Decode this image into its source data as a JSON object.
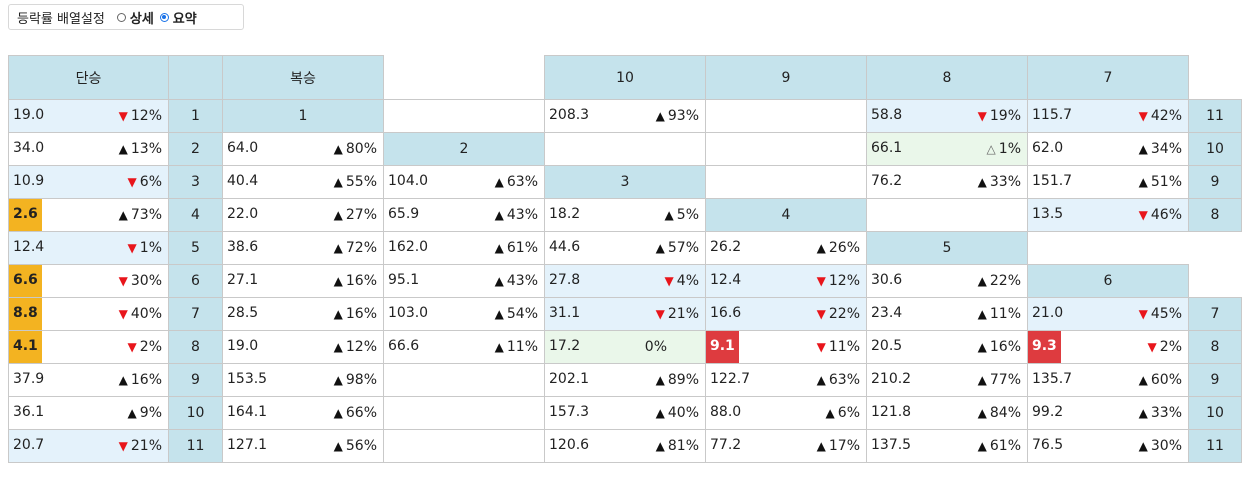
{
  "toolbar": {
    "label": "등락률 배열설정",
    "options": [
      {
        "label": "상세",
        "selected": false
      },
      {
        "label": "요약",
        "selected": true
      }
    ]
  },
  "headers": {
    "single": "단승",
    "quinella": "복승",
    "cols": [
      "10",
      "9",
      "8",
      "7"
    ]
  },
  "colors": {
    "header_bg": "#c5e3ec",
    "light_blue": "#e4f2fb",
    "light_green": "#eaf7ea",
    "gold": "#f3b321",
    "red_badge": "#de3b3f",
    "down_arrow": "#e8151b"
  },
  "rows": [
    {
      "num": "1",
      "single": {
        "v": "19.0",
        "d": "down",
        "p": "12%",
        "bg": "lb"
      },
      "a": {
        "type": "header",
        "label": "1"
      },
      "b": {
        "type": "blank"
      },
      "c10": {
        "v": "208.3",
        "d": "up",
        "p": "93%"
      },
      "c9": {
        "type": "empty"
      },
      "c8": {
        "v": "58.8",
        "d": "down",
        "p": "19%",
        "bg": "lb"
      },
      "c7": {
        "v": "115.7",
        "d": "down",
        "p": "42%",
        "bg": "lb"
      },
      "rn": "11"
    },
    {
      "num": "2",
      "single": {
        "v": "34.0",
        "d": "up",
        "p": "13%"
      },
      "a": {
        "v": "64.0",
        "d": "up",
        "p": "80%"
      },
      "b": {
        "type": "header",
        "label": "2"
      },
      "c10": {
        "type": "empty"
      },
      "c9": {
        "type": "empty"
      },
      "c8": {
        "v": "66.1",
        "d": "hollow",
        "p": "1%",
        "bg": "lg"
      },
      "c7": {
        "v": "62.0",
        "d": "up",
        "p": "34%"
      },
      "rn": "10"
    },
    {
      "num": "3",
      "single": {
        "v": "10.9",
        "d": "down",
        "p": "6%",
        "bg": "lb"
      },
      "a": {
        "v": "40.4",
        "d": "up",
        "p": "55%"
      },
      "b": {
        "v": "104.0",
        "d": "up",
        "p": "63%"
      },
      "c10": {
        "type": "header",
        "label": "3"
      },
      "c9": {
        "type": "empty"
      },
      "c8": {
        "v": "76.2",
        "d": "up",
        "p": "33%"
      },
      "c7": {
        "v": "151.7",
        "d": "up",
        "p": "51%"
      },
      "rn": "9"
    },
    {
      "num": "4",
      "single": {
        "v": "2.6",
        "d": "up",
        "p": "73%",
        "hl": "gold"
      },
      "a": {
        "v": "22.0",
        "d": "up",
        "p": "27%"
      },
      "b": {
        "v": "65.9",
        "d": "up",
        "p": "43%"
      },
      "c10": {
        "v": "18.2",
        "d": "up",
        "p": "5%"
      },
      "c9": {
        "type": "header",
        "label": "4"
      },
      "c8": {
        "type": "empty"
      },
      "c7": {
        "v": "13.5",
        "d": "down",
        "p": "46%",
        "bg": "lb"
      },
      "rn": "8"
    },
    {
      "num": "5",
      "single": {
        "v": "12.4",
        "d": "down",
        "p": "1%",
        "bg": "lb"
      },
      "a": {
        "v": "38.6",
        "d": "up",
        "p": "72%"
      },
      "b": {
        "v": "162.0",
        "d": "up",
        "p": "61%"
      },
      "c10": {
        "v": "44.6",
        "d": "up",
        "p": "57%"
      },
      "c9": {
        "v": "26.2",
        "d": "up",
        "p": "26%"
      },
      "c8": {
        "type": "header",
        "label": "5"
      },
      "c7": {
        "type": "blank"
      },
      "rn": ""
    },
    {
      "num": "6",
      "single": {
        "v": "6.6",
        "d": "down",
        "p": "30%",
        "hl": "gold"
      },
      "a": {
        "v": "27.1",
        "d": "up",
        "p": "16%"
      },
      "b": {
        "v": "95.1",
        "d": "up",
        "p": "43%"
      },
      "c10": {
        "v": "27.8",
        "d": "down",
        "p": "4%",
        "bg": "lb"
      },
      "c9": {
        "v": "12.4",
        "d": "down",
        "p": "12%",
        "bg": "lb"
      },
      "c8": {
        "v": "30.6",
        "d": "up",
        "p": "22%"
      },
      "c7": {
        "type": "header",
        "label": "6"
      },
      "rn": ""
    },
    {
      "num": "7",
      "single": {
        "v": "8.8",
        "d": "down",
        "p": "40%",
        "hl": "gold"
      },
      "a": {
        "v": "28.5",
        "d": "up",
        "p": "16%"
      },
      "b": {
        "v": "103.0",
        "d": "up",
        "p": "54%"
      },
      "c10": {
        "v": "31.1",
        "d": "down",
        "p": "21%",
        "bg": "lb"
      },
      "c9": {
        "v": "16.6",
        "d": "down",
        "p": "22%",
        "bg": "lb"
      },
      "c8": {
        "v": "23.4",
        "d": "up",
        "p": "11%"
      },
      "c7": {
        "v": "21.0",
        "d": "down",
        "p": "45%",
        "bg": "lb"
      },
      "rn": "7"
    },
    {
      "num": "8",
      "single": {
        "v": "4.1",
        "d": "down",
        "p": "2%",
        "hl": "gold"
      },
      "a": {
        "v": "19.0",
        "d": "up",
        "p": "12%"
      },
      "b": {
        "v": "66.6",
        "d": "up",
        "p": "11%"
      },
      "c10": {
        "v": "17.2",
        "d": "none",
        "p": "0%",
        "bg": "lg"
      },
      "c9": {
        "v": "9.1",
        "d": "down",
        "p": "11%",
        "hl": "red"
      },
      "c8": {
        "v": "20.5",
        "d": "up",
        "p": "16%"
      },
      "c7": {
        "v": "9.3",
        "d": "down",
        "p": "2%",
        "hl": "red"
      },
      "rn": "8"
    },
    {
      "num": "9",
      "single": {
        "v": "37.9",
        "d": "up",
        "p": "16%"
      },
      "a": {
        "v": "153.5",
        "d": "up",
        "p": "98%"
      },
      "b": {
        "type": "empty"
      },
      "c10": {
        "v": "202.1",
        "d": "up",
        "p": "89%"
      },
      "c9": {
        "v": "122.7",
        "d": "up",
        "p": "63%"
      },
      "c8": {
        "v": "210.2",
        "d": "up",
        "p": "77%"
      },
      "c7": {
        "v": "135.7",
        "d": "up",
        "p": "60%"
      },
      "rn": "9"
    },
    {
      "num": "10",
      "single": {
        "v": "36.1",
        "d": "up",
        "p": "9%"
      },
      "a": {
        "v": "164.1",
        "d": "up",
        "p": "66%"
      },
      "b": {
        "type": "empty"
      },
      "c10": {
        "v": "157.3",
        "d": "up",
        "p": "40%"
      },
      "c9": {
        "v": "88.0",
        "d": "up",
        "p": "6%"
      },
      "c8": {
        "v": "121.8",
        "d": "up",
        "p": "84%"
      },
      "c7": {
        "v": "99.2",
        "d": "up",
        "p": "33%"
      },
      "rn": "10"
    },
    {
      "num": "11",
      "single": {
        "v": "20.7",
        "d": "down",
        "p": "21%",
        "bg": "lb"
      },
      "a": {
        "v": "127.1",
        "d": "up",
        "p": "56%"
      },
      "b": {
        "type": "empty"
      },
      "c10": {
        "v": "120.6",
        "d": "up",
        "p": "81%"
      },
      "c9": {
        "v": "77.2",
        "d": "up",
        "p": "17%"
      },
      "c8": {
        "v": "137.5",
        "d": "up",
        "p": "61%"
      },
      "c7": {
        "v": "76.5",
        "d": "up",
        "p": "30%"
      },
      "rn": "11"
    }
  ]
}
